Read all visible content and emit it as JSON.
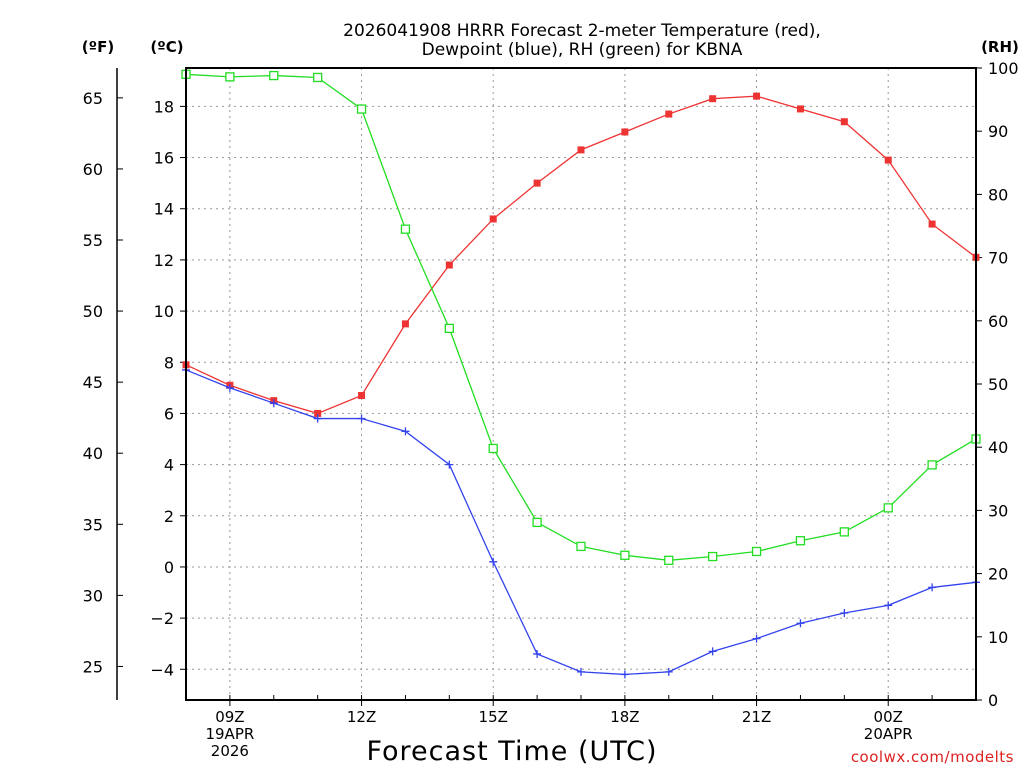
{
  "chart_data": {
    "type": "line",
    "title_line1": "2026041908 HRRR Forecast 2-meter Temperature (red),",
    "title_line2": "Dewpoint (blue), RH (green) for KBNA",
    "xlabel": "Forecast Time (UTC)",
    "credit": "coolwx.com/modelts",
    "x_hours": [
      8,
      9,
      10,
      11,
      12,
      13,
      14,
      15,
      16,
      17,
      18,
      19,
      20,
      21,
      22,
      23,
      24,
      25,
      26
    ],
    "xlim": [
      8,
      26
    ],
    "x_ticks": [
      {
        "hour": 9,
        "lines": [
          "09Z",
          "19APR",
          "2026"
        ]
      },
      {
        "hour": 12,
        "lines": [
          "12Z"
        ]
      },
      {
        "hour": 15,
        "lines": [
          "15Z"
        ]
      },
      {
        "hour": 18,
        "lines": [
          "18Z"
        ]
      },
      {
        "hour": 21,
        "lines": [
          "21Z"
        ]
      },
      {
        "hour": 24,
        "lines": [
          "00Z",
          "20APR"
        ]
      }
    ],
    "y_celsius": {
      "unit_label": "(ºC)",
      "ylim": [
        -5.2,
        19.5
      ],
      "ticks": [
        -4,
        -2,
        0,
        2,
        4,
        6,
        8,
        10,
        12,
        14,
        16,
        18
      ],
      "tick_labels": [
        "−4",
        "−2",
        "0",
        "2",
        "4",
        "6",
        "8",
        "10",
        "12",
        "14",
        "16",
        "18"
      ]
    },
    "y_fahrenheit": {
      "unit_label": "(ºF)",
      "ticks": [
        25,
        30,
        35,
        40,
        45,
        50,
        55,
        60,
        65
      ],
      "tick_labels": [
        "25",
        "30",
        "35",
        "40",
        "45",
        "50",
        "55",
        "60",
        "65"
      ]
    },
    "y_rh": {
      "unit_label": "(RH)",
      "ylim": [
        0,
        100
      ],
      "ticks": [
        0,
        10,
        20,
        30,
        40,
        50,
        60,
        70,
        80,
        90,
        100
      ],
      "tick_labels": [
        "0",
        "10",
        "20",
        "30",
        "40",
        "50",
        "60",
        "70",
        "80",
        "90",
        "100"
      ]
    },
    "series": [
      {
        "name": "2-meter Temperature",
        "color": "#ee3333",
        "axis": "celsius",
        "marker": "filled-square",
        "values": [
          7.9,
          7.1,
          6.5,
          6.0,
          6.7,
          9.5,
          11.8,
          13.6,
          15.0,
          16.3,
          17.0,
          17.7,
          18.3,
          18.4,
          17.9,
          17.4,
          15.9,
          13.4,
          12.1
        ]
      },
      {
        "name": "Dewpoint",
        "color": "#3344ee",
        "axis": "celsius",
        "marker": "plus",
        "values": [
          7.7,
          7.0,
          6.4,
          5.8,
          5.8,
          5.3,
          4.0,
          0.2,
          -3.4,
          -4.1,
          -4.2,
          -4.1,
          -3.3,
          -2.8,
          -2.2,
          -1.8,
          -1.5,
          -0.8,
          -0.6
        ]
      },
      {
        "name": "Relative Humidity",
        "color": "#22dd22",
        "axis": "rh",
        "marker": "open-square",
        "values": [
          99.0,
          98.6,
          98.8,
          98.5,
          93.5,
          74.5,
          58.8,
          39.8,
          28.1,
          24.3,
          22.9,
          22.1,
          22.7,
          23.5,
          25.2,
          26.6,
          30.4,
          37.2,
          41.3
        ]
      }
    ]
  }
}
